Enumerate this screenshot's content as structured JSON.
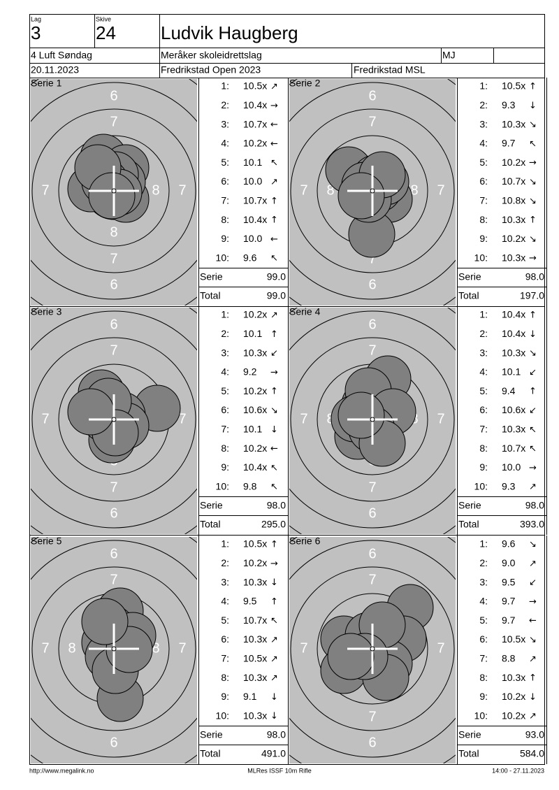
{
  "header": {
    "lag_label": "Lag",
    "lag": "3",
    "skive_label": "Skive",
    "skive": "24",
    "name": "Ludvik Haugberg",
    "class": "4 Luft Søndag",
    "club": "Meråker skoleidrettslag",
    "initials": "MJ",
    "date": "20.11.2023",
    "competition": "Fredrikstad Open 2023",
    "venue": "Fredrikstad MSL"
  },
  "target": {
    "ring_labels": [
      "6",
      "7",
      "8"
    ]
  },
  "labels": {
    "serie": "Serie",
    "total": "Total"
  },
  "series": [
    {
      "title": "Serie 1",
      "shots": [
        {
          "number": "1:",
          "score": "10.5x",
          "arrow": "↗"
        },
        {
          "number": "2:",
          "score": "10.4x",
          "arrow": "→"
        },
        {
          "number": "3:",
          "score": "10.7x",
          "arrow": "←"
        },
        {
          "number": "4:",
          "score": "10.2x",
          "arrow": "←"
        },
        {
          "number": "5:",
          "score": "10.1",
          "arrow": "↖"
        },
        {
          "number": "6:",
          "score": "10.0",
          "arrow": "↗"
        },
        {
          "number": "7:",
          "score": "10.7x",
          "arrow": "↑"
        },
        {
          "number": "8:",
          "score": "10.4x",
          "arrow": "↑"
        },
        {
          "number": "9:",
          "score": "10.0",
          "arrow": "←"
        },
        {
          "number": "10:",
          "score": "9.6",
          "arrow": "↖"
        }
      ],
      "serie": "99.0",
      "total": "99.0"
    },
    {
      "title": "Serie 2",
      "shots": [
        {
          "number": "1:",
          "score": "10.5x",
          "arrow": "↑"
        },
        {
          "number": "2:",
          "score": "9.3",
          "arrow": "↓"
        },
        {
          "number": "3:",
          "score": "10.3x",
          "arrow": "↘"
        },
        {
          "number": "4:",
          "score": "9.7",
          "arrow": "↖"
        },
        {
          "number": "5:",
          "score": "10.2x",
          "arrow": "→"
        },
        {
          "number": "6:",
          "score": "10.7x",
          "arrow": "↘"
        },
        {
          "number": "7:",
          "score": "10.8x",
          "arrow": "↘"
        },
        {
          "number": "8:",
          "score": "10.3x",
          "arrow": "↑"
        },
        {
          "number": "9:",
          "score": "10.2x",
          "arrow": "↘"
        },
        {
          "number": "10:",
          "score": "10.3x",
          "arrow": "→"
        }
      ],
      "serie": "98.0",
      "total": "197.0"
    },
    {
      "title": "Serie 3",
      "shots": [
        {
          "number": "1:",
          "score": "10.2x",
          "arrow": "↗"
        },
        {
          "number": "2:",
          "score": "10.1",
          "arrow": "↑"
        },
        {
          "number": "3:",
          "score": "10.3x",
          "arrow": "↙"
        },
        {
          "number": "4:",
          "score": "9.2",
          "arrow": "→"
        },
        {
          "number": "5:",
          "score": "10.2x",
          "arrow": "↑"
        },
        {
          "number": "6:",
          "score": "10.6x",
          "arrow": "↘"
        },
        {
          "number": "7:",
          "score": "10.1",
          "arrow": "↓"
        },
        {
          "number": "8:",
          "score": "10.2x",
          "arrow": "←"
        },
        {
          "number": "9:",
          "score": "10.4x",
          "arrow": "↖"
        },
        {
          "number": "10:",
          "score": "9.8",
          "arrow": "↖"
        }
      ],
      "serie": "98.0",
      "total": "295.0"
    },
    {
      "title": "Serie 4",
      "shots": [
        {
          "number": "1:",
          "score": "10.4x",
          "arrow": "↑"
        },
        {
          "number": "2:",
          "score": "10.4x",
          "arrow": "↓"
        },
        {
          "number": "3:",
          "score": "10.3x",
          "arrow": "↘"
        },
        {
          "number": "4:",
          "score": "10.1",
          "arrow": "↙"
        },
        {
          "number": "5:",
          "score": "9.4",
          "arrow": "↑"
        },
        {
          "number": "6:",
          "score": "10.6x",
          "arrow": "↙"
        },
        {
          "number": "7:",
          "score": "10.3x",
          "arrow": "↖"
        },
        {
          "number": "8:",
          "score": "10.7x",
          "arrow": "↖"
        },
        {
          "number": "9:",
          "score": "10.0",
          "arrow": "→"
        },
        {
          "number": "10:",
          "score": "9.3",
          "arrow": "↗"
        }
      ],
      "serie": "98.0",
      "total": "393.0"
    },
    {
      "title": "Serie 5",
      "shots": [
        {
          "number": "1:",
          "score": "10.5x",
          "arrow": "↑"
        },
        {
          "number": "2:",
          "score": "10.2x",
          "arrow": "→"
        },
        {
          "number": "3:",
          "score": "10.3x",
          "arrow": "↓"
        },
        {
          "number": "4:",
          "score": "9.5",
          "arrow": "↑"
        },
        {
          "number": "5:",
          "score": "10.7x",
          "arrow": "↖"
        },
        {
          "number": "6:",
          "score": "10.3x",
          "arrow": "↗"
        },
        {
          "number": "7:",
          "score": "10.5x",
          "arrow": "↗"
        },
        {
          "number": "8:",
          "score": "10.3x",
          "arrow": "↗"
        },
        {
          "number": "9:",
          "score": "9.1",
          "arrow": "↓"
        },
        {
          "number": "10:",
          "score": "10.3x",
          "arrow": "↓"
        }
      ],
      "serie": "98.0",
      "total": "491.0"
    },
    {
      "title": "Serie 6",
      "shots": [
        {
          "number": "1:",
          "score": "9.6",
          "arrow": "↘"
        },
        {
          "number": "2:",
          "score": "9.0",
          "arrow": "↗"
        },
        {
          "number": "3:",
          "score": "9.5",
          "arrow": "↙"
        },
        {
          "number": "4:",
          "score": "9.7",
          "arrow": "→"
        },
        {
          "number": "5:",
          "score": "9.7",
          "arrow": "←"
        },
        {
          "number": "6:",
          "score": "10.5x",
          "arrow": "↘"
        },
        {
          "number": "7:",
          "score": "8.8",
          "arrow": "↗"
        },
        {
          "number": "8:",
          "score": "10.3x",
          "arrow": "↑"
        },
        {
          "number": "9:",
          "score": "10.2x",
          "arrow": "↓"
        },
        {
          "number": "10:",
          "score": "10.2x",
          "arrow": "↗"
        }
      ],
      "serie": "93.0",
      "total": "584.0"
    }
  ],
  "footer": {
    "left": "http://www.megalink.no",
    "center": "MLRes ISSF 10m Rifle",
    "right": "14:00 - 27.11.2023"
  }
}
